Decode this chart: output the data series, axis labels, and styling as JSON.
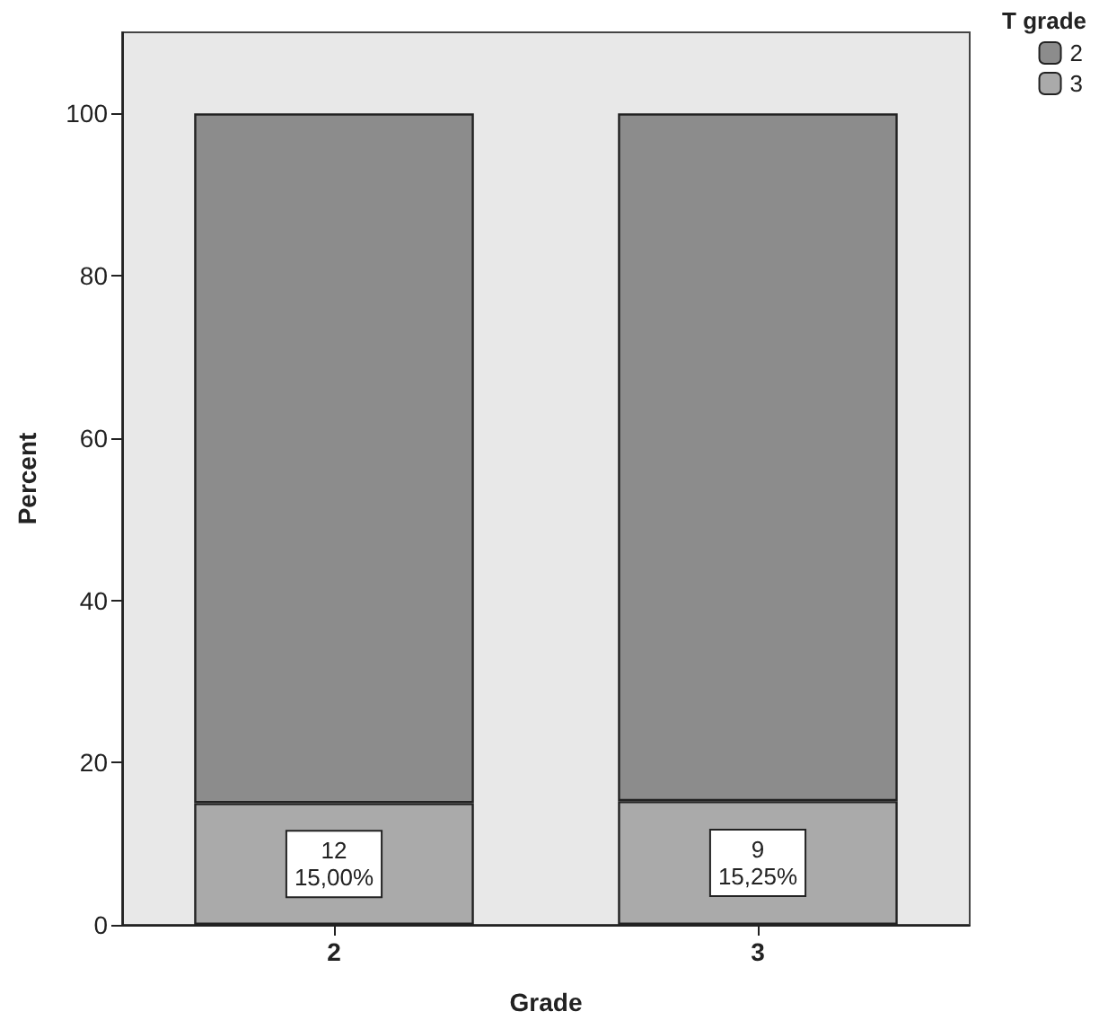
{
  "chart_data": {
    "type": "bar",
    "stacked": true,
    "xlabel": "Grade",
    "ylabel": "Percent",
    "legend_title": "T grade",
    "categories": [
      "2",
      "3"
    ],
    "series": [
      {
        "name": "3",
        "color": "#aaaaaa",
        "values": [
          15.0,
          15.25
        ],
        "value_labels": [
          "12\n15,00%",
          "9\n15,25%"
        ]
      },
      {
        "name": "2",
        "color": "#8c8c8c",
        "values": [
          85.0,
          84.75
        ],
        "value_labels": [
          null,
          null
        ]
      }
    ],
    "ylim": [
      0,
      110
    ],
    "yticks": [
      0,
      20,
      40,
      60,
      80,
      100
    ],
    "grid": false,
    "legend": "top right"
  }
}
